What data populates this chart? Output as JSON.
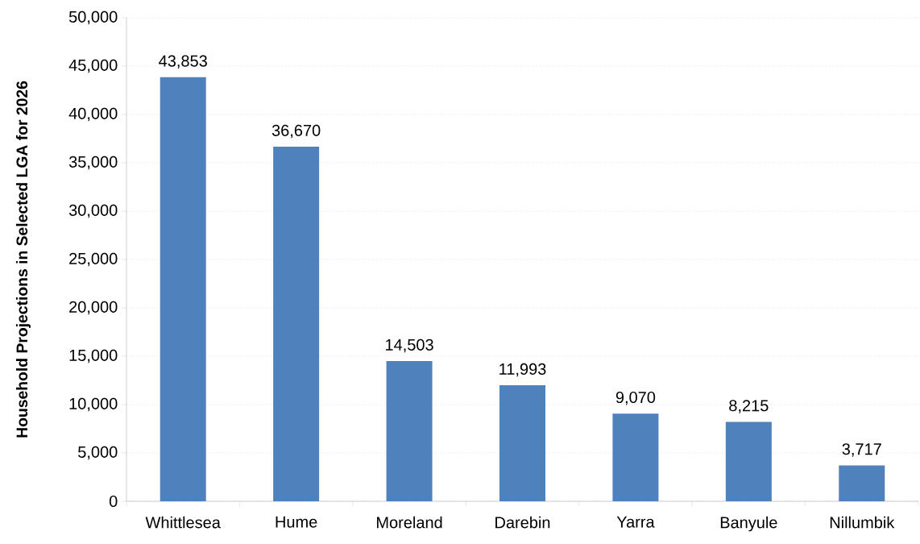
{
  "chart_data": {
    "type": "bar",
    "ylabel": "Household Projections in Selected LGA for 2026",
    "categories": [
      "Whittlesea",
      "Hume",
      "Moreland",
      "Darebin",
      "Yarra",
      "Banyule",
      "Nillumbik"
    ],
    "values": [
      43853,
      36670,
      14503,
      11993,
      9070,
      8215,
      3717
    ],
    "value_labels": [
      "43,853",
      "36,670",
      "14,503",
      "11,993",
      "9,070",
      "8,215",
      "3,717"
    ],
    "color": "#4f81bd",
    "ylim": [
      0,
      50000
    ],
    "yticks": [
      0,
      {
        "value": 5000,
        "label": "5,000"
      },
      {
        "value": 10000,
        "label": "10,000"
      },
      {
        "value": 15000,
        "label": "15,000"
      },
      {
        "value": 20000,
        "label": "20,000"
      },
      {
        "value": 25000,
        "label": "25,000"
      },
      {
        "value": 30000,
        "label": "30,000"
      },
      {
        "value": 35000,
        "label": "35,000"
      },
      {
        "value": 40000,
        "label": "40,000"
      },
      {
        "value": 45000,
        "label": "45,000"
      },
      {
        "value": 50000,
        "label": "50,000"
      }
    ],
    "grid": "y"
  }
}
